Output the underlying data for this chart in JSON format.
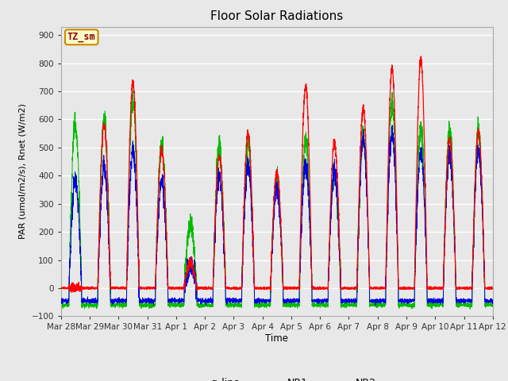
{
  "title": "Floor Solar Radiations",
  "ylabel": "PAR (umol/m2/s), Rnet (W/m2)",
  "xlabel": "Time",
  "ylim": [
    -100,
    930
  ],
  "yticks": [
    -100,
    0,
    100,
    200,
    300,
    400,
    500,
    600,
    700,
    800,
    900
  ],
  "xtick_labels": [
    "Mar 28",
    "Mar 29",
    "Mar 30",
    "Mar 31",
    "Apr 1",
    "Apr 2",
    "Apr 3",
    "Apr 4",
    "Apr 5",
    "Apr 6",
    "Apr 7",
    "Apr 8",
    "Apr 9",
    "Apr 10",
    "Apr 11",
    "Apr 12"
  ],
  "fig_bg_color": "#e8e8e8",
  "plot_bg_color": "#e8e8e8",
  "annotation_text": "TZ_sm",
  "annotation_bg": "#ffffcc",
  "annotation_border": "#cc8800",
  "line_colors": {
    "q_line": "#ff0000",
    "NR1": "#0000dd",
    "NR2": "#00bb00"
  },
  "num_days": 15,
  "points_per_day": 288,
  "q_peaks": [
    0,
    580,
    730,
    490,
    90,
    470,
    550,
    410,
    720,
    520,
    640,
    780,
    810,
    530,
    560
  ],
  "nr1_peaks": [
    380,
    430,
    490,
    380,
    80,
    400,
    430,
    350,
    440,
    420,
    530,
    560,
    480,
    480,
    490
  ],
  "nr2_peaks": [
    590,
    600,
    670,
    510,
    225,
    500,
    510,
    390,
    520,
    410,
    540,
    660,
    570,
    565,
    560
  ]
}
